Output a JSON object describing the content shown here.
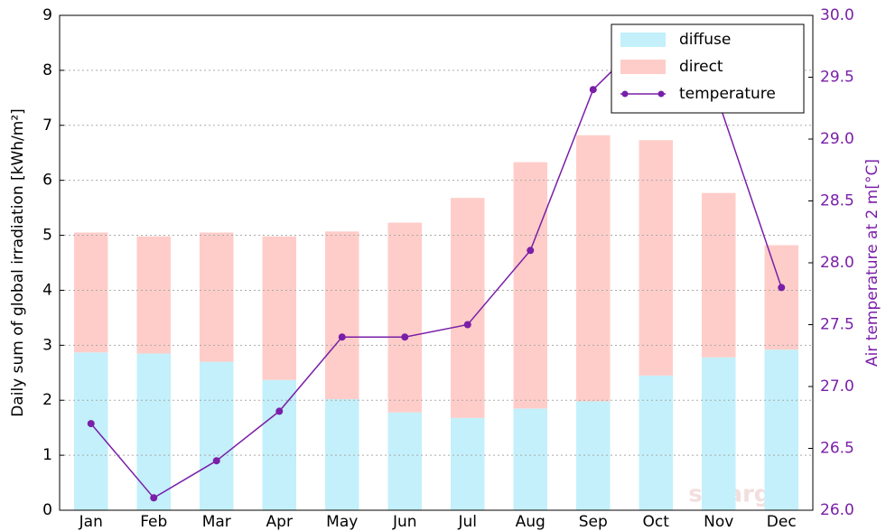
{
  "chart_data": {
    "type": "bar",
    "categories": [
      "Jan",
      "Feb",
      "Mar",
      "Apr",
      "May",
      "Jun",
      "Jul",
      "Aug",
      "Sep",
      "Oct",
      "Nov",
      "Dec"
    ],
    "series": [
      {
        "name": "diffuse",
        "color": "#c3f0fb",
        "values": [
          2.87,
          2.85,
          2.7,
          2.37,
          2.02,
          1.78,
          1.68,
          1.85,
          1.98,
          2.45,
          2.78,
          2.92
        ]
      },
      {
        "name": "direct",
        "color": "#ffcdc9",
        "values": [
          2.18,
          2.13,
          2.35,
          2.61,
          3.05,
          3.45,
          4.0,
          4.48,
          4.84,
          4.28,
          2.99,
          1.9
        ]
      },
      {
        "name": "temperature",
        "color": "#7a1fa8",
        "axis": "y2",
        "type": "line",
        "values": [
          26.7,
          26.1,
          26.4,
          26.8,
          27.4,
          27.4,
          27.5,
          28.1,
          29.4,
          29.9,
          29.3,
          27.8
        ]
      }
    ],
    "ylabel": "Daily sum of global irradiation [kWh/m²]",
    "y2label": "Air temperature at 2 m[°C]",
    "ylim": [
      0,
      9
    ],
    "yticks": [
      0,
      1,
      2,
      3,
      4,
      5,
      6,
      7,
      8,
      9
    ],
    "y2lim": [
      26,
      30
    ],
    "y2ticks": [
      {
        "value": 26,
        "label": "26.0"
      },
      {
        "value": 26.5,
        "label": "26.5"
      },
      {
        "value": 27,
        "label": "27.0"
      },
      {
        "value": 27.5,
        "label": "27.5"
      },
      {
        "value": 28,
        "label": "28.0"
      },
      {
        "value": 28.5,
        "label": "28.5"
      },
      {
        "value": 29,
        "label": "29.0"
      },
      {
        "value": 29.5,
        "label": "29.5"
      },
      {
        "value": 30,
        "label": "30.0"
      }
    ],
    "grid": true,
    "legend": "upper right",
    "stacked": true,
    "watermark": "solargis"
  }
}
